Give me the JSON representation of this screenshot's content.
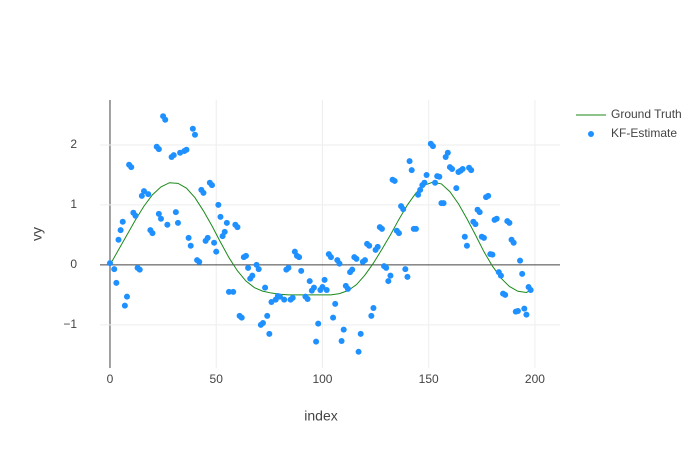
{
  "chart_data": {
    "type": "scatter",
    "xlabel": "index",
    "ylabel": "vy",
    "xlim": [
      -4.7,
      211.8
    ],
    "ylim": [
      -1.72,
      2.75
    ],
    "xticks": [
      0,
      50,
      100,
      150,
      200
    ],
    "yticks": [
      {
        "value": -1,
        "label": "−1"
      },
      0,
      1,
      2
    ],
    "grid": true,
    "legend": "right",
    "series": [
      {
        "name": "Ground Truth",
        "mode": "line",
        "color": "#1a8a1a",
        "x": [
          0,
          4,
          8,
          12,
          16,
          20,
          24,
          28,
          32,
          36,
          40,
          44,
          48,
          52,
          56,
          60,
          64,
          68,
          72,
          76,
          80,
          84,
          88,
          92,
          96,
          100,
          104,
          108,
          112,
          116,
          120,
          124,
          128,
          132,
          136,
          140,
          144,
          148,
          152,
          156,
          160,
          164,
          168,
          172,
          176,
          180,
          184,
          188,
          192,
          196,
          198
        ],
        "values": [
          0,
          0.25,
          0.5,
          0.75,
          0.98,
          1.17,
          1.3,
          1.37,
          1.36,
          1.28,
          1.12,
          0.9,
          0.65,
          0.38,
          0.12,
          -0.1,
          -0.27,
          -0.38,
          -0.44,
          -0.47,
          -0.49,
          -0.5,
          -0.5,
          -0.5,
          -0.5,
          -0.5,
          -0.5,
          -0.48,
          -0.43,
          -0.33,
          -0.17,
          0.03,
          0.26,
          0.5,
          0.76,
          1.0,
          1.2,
          1.33,
          1.38,
          1.35,
          1.22,
          1.02,
          0.77,
          0.5,
          0.22,
          -0.02,
          -0.22,
          -0.36,
          -0.44,
          -0.46,
          -0.42
        ]
      },
      {
        "name": "KF-Estimate",
        "mode": "markers",
        "color": "#1e90ff",
        "x": [
          0,
          2,
          3,
          4,
          5,
          6,
          7,
          8,
          9,
          10,
          11,
          12,
          13,
          14,
          15,
          16,
          18,
          19,
          20,
          22,
          23,
          23,
          24,
          25,
          26,
          27,
          29,
          30,
          31,
          32,
          33,
          35,
          36,
          37,
          38,
          39,
          40,
          41,
          42,
          43,
          44,
          45,
          46,
          47,
          48,
          49,
          50,
          51,
          52,
          53,
          54,
          55,
          56,
          58,
          59,
          60,
          61,
          62,
          63,
          64,
          65,
          66,
          67,
          69,
          70,
          71,
          72,
          73,
          74,
          75,
          76,
          78,
          79,
          80,
          82,
          83,
          84,
          85,
          86,
          87,
          88,
          89,
          90,
          92,
          93,
          94,
          95,
          96,
          97,
          98,
          99,
          100,
          101,
          102,
          103,
          104,
          105,
          106,
          107,
          108,
          109,
          110,
          111,
          112,
          113,
          114,
          115,
          116,
          117,
          118,
          119,
          120,
          121,
          122,
          123,
          124,
          125,
          126,
          127,
          128,
          129,
          130,
          131,
          132,
          133,
          134,
          135,
          136,
          137,
          138,
          139,
          140,
          141,
          142,
          143,
          144,
          145,
          146,
          147,
          148,
          149,
          151,
          152,
          153,
          154,
          155,
          156,
          157,
          158,
          159,
          160,
          161,
          163,
          164,
          165,
          166,
          167,
          168,
          169,
          170,
          171,
          172,
          173,
          174,
          175,
          176,
          177,
          178,
          179,
          180,
          181,
          182,
          183,
          184,
          185,
          186,
          187,
          188,
          189,
          190,
          191,
          192,
          193,
          194,
          195,
          196,
          197,
          198
        ],
        "values": [
          0.03,
          -0.07,
          -0.3,
          0.42,
          0.58,
          0.72,
          -0.68,
          -0.53,
          1.67,
          1.63,
          0.87,
          0.82,
          -0.05,
          -0.08,
          1.15,
          1.23,
          1.18,
          0.58,
          0.53,
          1.97,
          1.93,
          0.85,
          0.77,
          2.48,
          2.42,
          0.67,
          1.8,
          1.83,
          0.88,
          0.7,
          1.87,
          1.9,
          1.92,
          0.45,
          0.32,
          2.27,
          2.17,
          0.08,
          0.05,
          1.25,
          1.2,
          0.4,
          0.45,
          1.37,
          1.33,
          0.37,
          0.22,
          1.0,
          0.8,
          0.48,
          0.55,
          0.7,
          -0.45,
          -0.45,
          0.67,
          0.63,
          -0.85,
          -0.88,
          0.13,
          0.15,
          -0.05,
          -0.23,
          -0.18,
          0,
          -0.07,
          -1.0,
          -0.97,
          -0.38,
          -0.85,
          -1.15,
          -0.62,
          -0.58,
          -0.52,
          -0.53,
          -0.58,
          -0.08,
          -0.05,
          -0.58,
          -0.55,
          0.22,
          0.15,
          0.13,
          -0.1,
          -0.53,
          -0.57,
          -0.27,
          -0.43,
          -0.38,
          -1.28,
          -0.98,
          -0.42,
          -0.37,
          -0.25,
          -0.42,
          0.18,
          0.13,
          -0.88,
          -0.65,
          0.08,
          0.02,
          -1.27,
          -1.08,
          -0.35,
          -0.4,
          -0.12,
          -0.08,
          0.13,
          0.1,
          -1.45,
          -1.15,
          0.05,
          0.08,
          0.35,
          0.32,
          -0.85,
          -0.72,
          0.25,
          0.3,
          0.63,
          0.6,
          -0.02,
          -0.05,
          -0.27,
          -0.18,
          1.42,
          1.4,
          0.57,
          0.53,
          0.98,
          0.93,
          -0.07,
          -0.2,
          1.73,
          1.58,
          0.6,
          0.6,
          1.17,
          1.25,
          1.33,
          1.37,
          1.5,
          2.02,
          1.98,
          1.37,
          1.48,
          1.47,
          1.03,
          1.03,
          1.8,
          1.87,
          1.63,
          1.6,
          1.28,
          1.55,
          1.57,
          1.6,
          0.47,
          0.32,
          1.62,
          1.58,
          0.72,
          0.68,
          0.92,
          0.88,
          0.47,
          0.45,
          1.13,
          1.15,
          0.18,
          0.17,
          0.75,
          0.77,
          -0.12,
          -0.18,
          -0.48,
          -0.5,
          0.73,
          0.7,
          0.42,
          0.37,
          -0.78,
          -0.77,
          0.07,
          -0.15,
          -0.73,
          -0.83,
          -0.37,
          -0.42
        ]
      }
    ]
  }
}
